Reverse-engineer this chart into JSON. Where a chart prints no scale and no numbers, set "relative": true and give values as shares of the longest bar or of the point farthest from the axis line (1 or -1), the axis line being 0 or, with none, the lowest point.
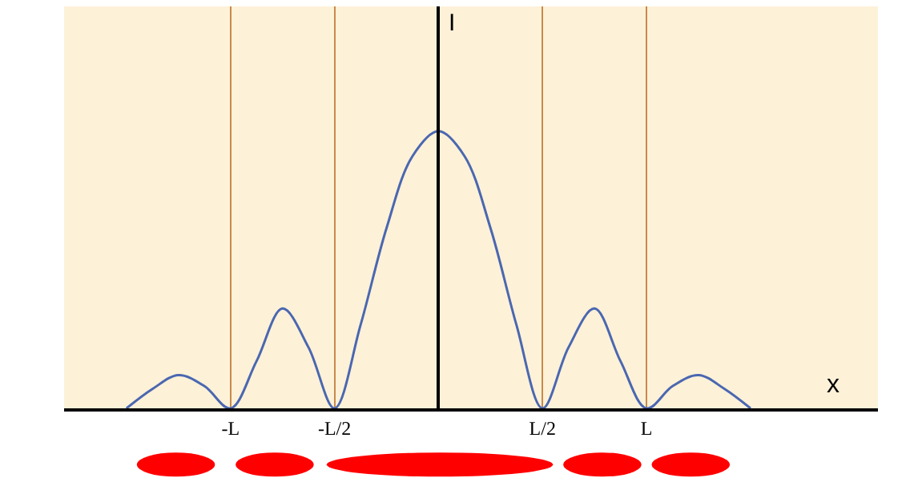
{
  "chart_data": {
    "type": "line",
    "relative": true,
    "xlabel": "x",
    "ylabel": "I",
    "categories": [
      null,
      null,
      null,
      null,
      null,
      null,
      "-L",
      null,
      null,
      null,
      "-L/2",
      null,
      null,
      null,
      null,
      null,
      null,
      null,
      "L/2",
      null,
      null,
      null,
      "L",
      null,
      null,
      null,
      null,
      null,
      null,
      null,
      null,
      null
    ],
    "series": [
      {
        "color": "#4a67b0",
        "values": [
          null,
          null,
          0,
          0.07,
          0.12,
          0.08,
          0,
          0.17,
          0.36,
          0.22,
          0,
          0.3,
          0.65,
          0.91,
          1,
          0.91,
          0.65,
          0.3,
          0,
          0.22,
          0.36,
          0.17,
          0,
          0.08,
          0.12,
          0.07,
          0,
          null,
          null,
          null,
          null,
          null
        ]
      }
    ],
    "grid": "x",
    "marker": "none",
    "line_style": "solid"
  }
}
